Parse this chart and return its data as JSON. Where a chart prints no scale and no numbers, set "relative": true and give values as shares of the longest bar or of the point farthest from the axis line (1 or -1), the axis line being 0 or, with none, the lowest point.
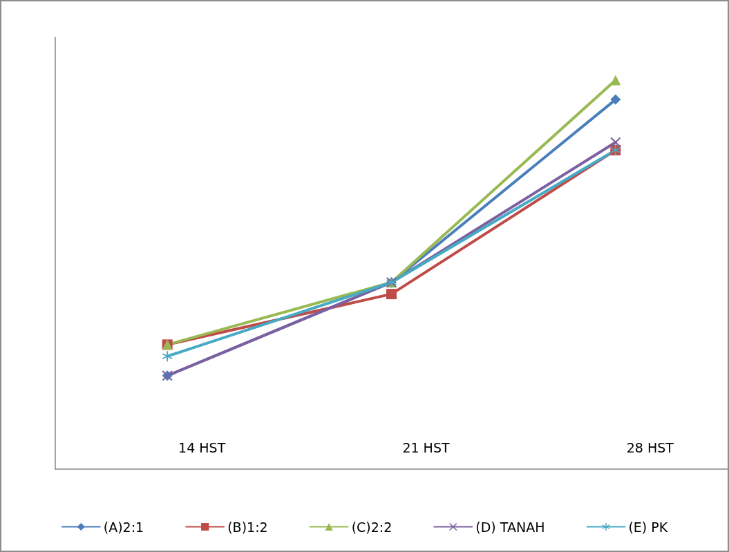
{
  "chart_data": {
    "type": "line",
    "relative": true,
    "categories": [
      "14 HST",
      "21 HST",
      "28 HST"
    ],
    "grid": false,
    "legend": "bottom",
    "series": [
      {
        "name": "(A)2:1",
        "color": "#4a7ebb",
        "marker": "diamond",
        "values": [
          0.24,
          0.48,
          0.95
        ]
      },
      {
        "name": "(B)1:2",
        "color": "#be4b48",
        "marker": "square",
        "values": [
          0.32,
          0.45,
          0.82
        ]
      },
      {
        "name": "(C)2:2",
        "color": "#98b954",
        "marker": "triangle",
        "values": [
          0.32,
          0.48,
          1
        ]
      },
      {
        "name": "(D) TANAH",
        "color": "#7d60a0",
        "marker": "cross",
        "values": [
          0.24,
          0.48,
          0.84
        ]
      },
      {
        "name": "(E) PK",
        "color": "#46aac5",
        "marker": "star",
        "values": [
          0.29,
          0.48,
          0.82
        ]
      }
    ]
  }
}
